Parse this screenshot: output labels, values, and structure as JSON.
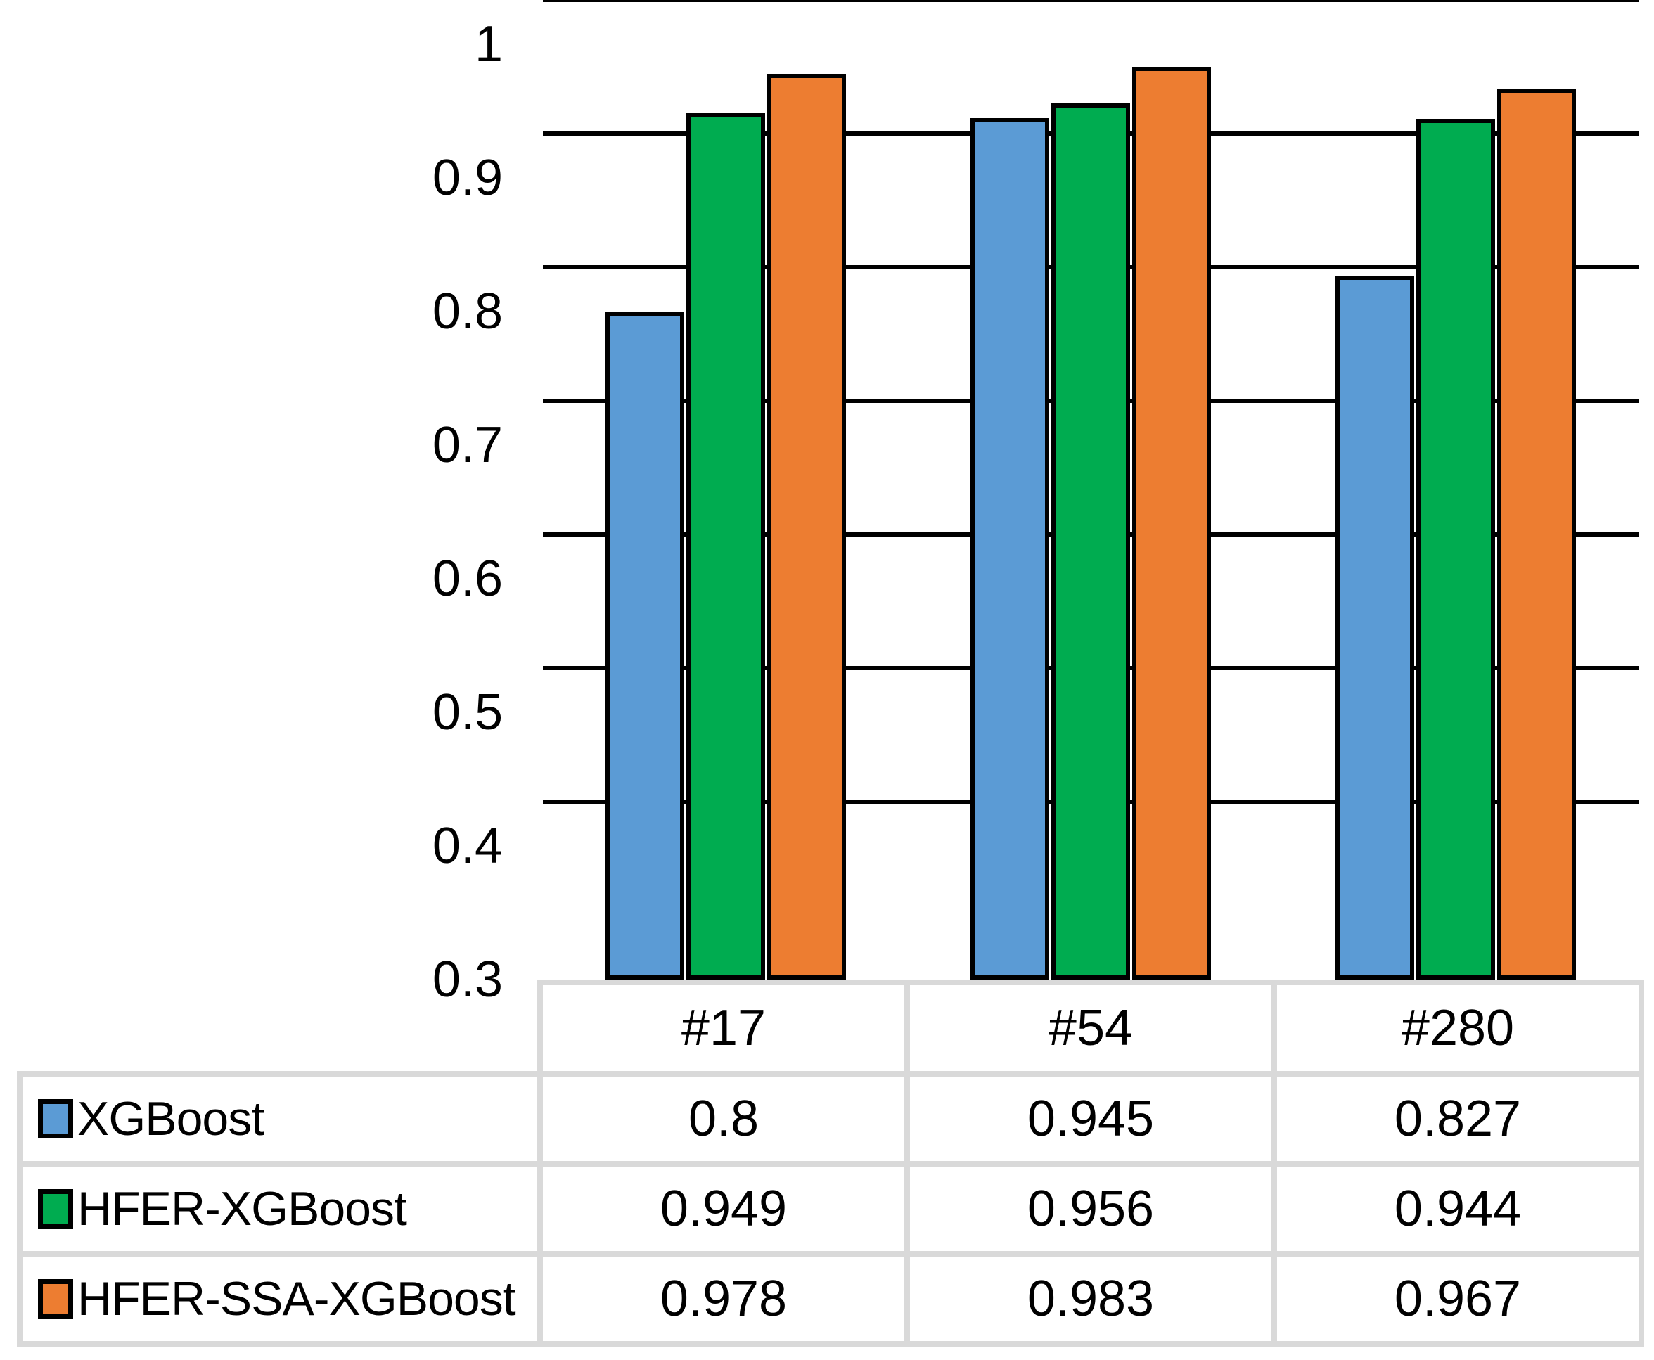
{
  "chart_data": {
    "type": "bar",
    "title": "",
    "xlabel": "",
    "ylabel": "",
    "categories": [
      "#17",
      "#54",
      "#280"
    ],
    "series": [
      {
        "name": "XGBoost",
        "color": "#5B9BD5",
        "values": [
          0.8,
          0.945,
          0.827
        ],
        "display_values": [
          "0.8",
          "0.945",
          "0.827"
        ]
      },
      {
        "name": "HFER-XGBoost",
        "color": "#00AC50",
        "values": [
          0.949,
          0.956,
          0.944
        ],
        "display_values": [
          "0.949",
          "0.956",
          "0.944"
        ]
      },
      {
        "name": "HFER-SSA-XGBoost",
        "color": "#ED7D31",
        "values": [
          0.978,
          0.983,
          0.967
        ],
        "display_values": [
          "0.978",
          "0.983",
          "0.967"
        ]
      }
    ],
    "y_axis": {
      "min": 0.3,
      "max": 1,
      "step": 0.1,
      "tick_labels": [
        "1",
        "0.9",
        "0.8",
        "0.7",
        "0.6",
        "0.5",
        "0.4",
        "0.3"
      ]
    },
    "ylim": [
      0.3,
      1
    ],
    "grid": true,
    "legend_position": "data-table-left",
    "data_table_shown": true
  },
  "style": {
    "bar_border_color": "#000000",
    "gridline_color": "#000000",
    "table_border_color": "#D9D9D9",
    "background_color": "#FFFFFF",
    "text_color": "#000000"
  }
}
